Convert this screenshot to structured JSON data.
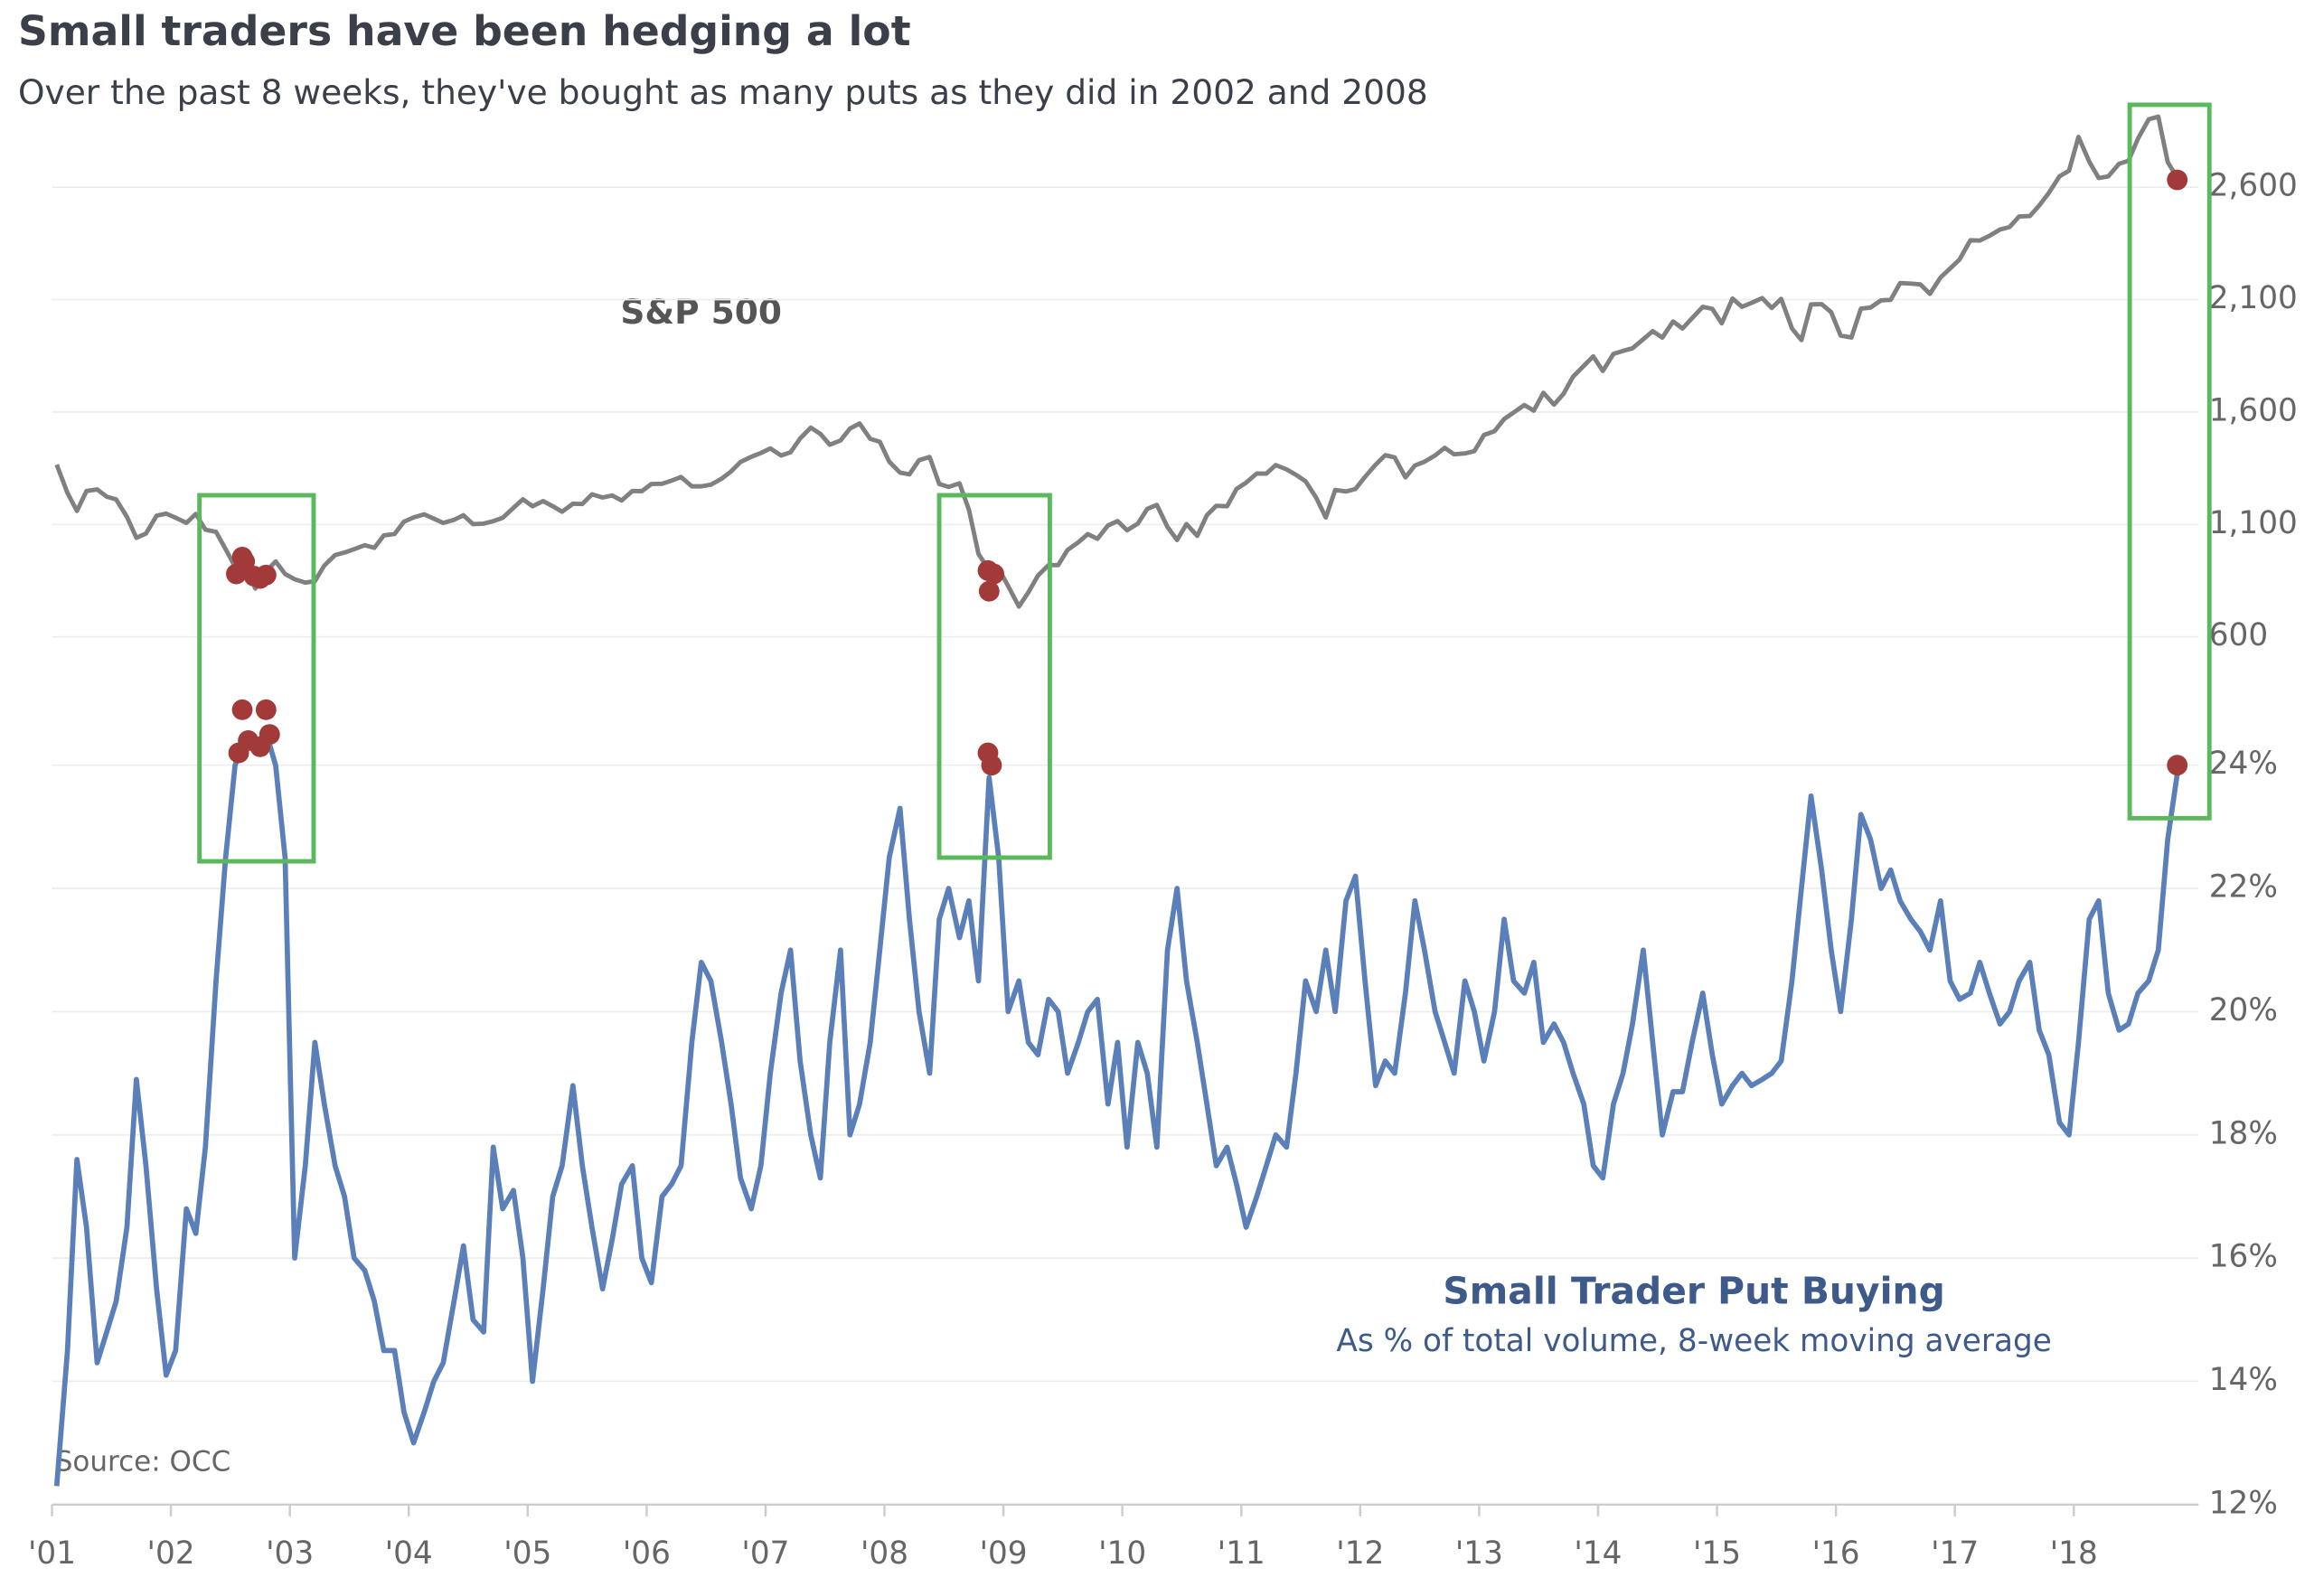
{
  "chart_data": {
    "type": "line",
    "title": "Small traders have been hedging a lot",
    "subtitle": "Over the past 8 weeks, they've bought as many puts as they did in 2002 and 2008",
    "annotations": [
      "As % of total volume, 8-week moving average",
      "Source: OCC"
    ],
    "x": [
      2001.04,
      2001.13,
      2001.21,
      2001.29,
      2001.38,
      2001.46,
      2001.54,
      2001.63,
      2001.71,
      2001.79,
      2001.88,
      2001.96,
      2002.04,
      2002.13,
      2002.21,
      2002.29,
      2002.38,
      2002.46,
      2002.54,
      2002.63,
      2002.71,
      2002.79,
      2002.88,
      2002.96,
      2003.04,
      2003.13,
      2003.21,
      2003.29,
      2003.38,
      2003.46,
      2003.54,
      2003.63,
      2003.71,
      2003.79,
      2003.88,
      2003.96,
      2004.04,
      2004.13,
      2004.21,
      2004.29,
      2004.38,
      2004.46,
      2004.54,
      2004.63,
      2004.71,
      2004.79,
      2004.88,
      2004.96,
      2005.04,
      2005.13,
      2005.21,
      2005.29,
      2005.38,
      2005.46,
      2005.54,
      2005.63,
      2005.71,
      2005.79,
      2005.88,
      2005.96,
      2006.04,
      2006.13,
      2006.21,
      2006.29,
      2006.38,
      2006.46,
      2006.54,
      2006.63,
      2006.71,
      2006.79,
      2006.88,
      2006.96,
      2007.04,
      2007.13,
      2007.21,
      2007.29,
      2007.38,
      2007.46,
      2007.54,
      2007.63,
      2007.71,
      2007.79,
      2007.88,
      2007.96,
      2008.04,
      2008.13,
      2008.21,
      2008.29,
      2008.38,
      2008.46,
      2008.54,
      2008.63,
      2008.71,
      2008.79,
      2008.88,
      2008.96,
      2009.04,
      2009.13,
      2009.21,
      2009.29,
      2009.38,
      2009.46,
      2009.54,
      2009.63,
      2009.71,
      2009.79,
      2009.88,
      2009.96,
      2010.04,
      2010.13,
      2010.21,
      2010.29,
      2010.38,
      2010.46,
      2010.54,
      2010.63,
      2010.71,
      2010.79,
      2010.88,
      2010.96,
      2011.04,
      2011.13,
      2011.21,
      2011.29,
      2011.38,
      2011.46,
      2011.54,
      2011.63,
      2011.71,
      2011.79,
      2011.88,
      2011.96,
      2012.04,
      2012.13,
      2012.21,
      2012.29,
      2012.38,
      2012.46,
      2012.54,
      2012.63,
      2012.71,
      2012.79,
      2012.88,
      2012.96,
      2013.04,
      2013.13,
      2013.21,
      2013.29,
      2013.38,
      2013.46,
      2013.54,
      2013.63,
      2013.71,
      2013.79,
      2013.88,
      2013.96,
      2014.04,
      2014.13,
      2014.21,
      2014.29,
      2014.38,
      2014.46,
      2014.54,
      2014.63,
      2014.71,
      2014.79,
      2014.88,
      2014.96,
      2015.04,
      2015.13,
      2015.21,
      2015.29,
      2015.38,
      2015.46,
      2015.54,
      2015.63,
      2015.71,
      2015.79,
      2015.88,
      2015.96,
      2016.04,
      2016.13,
      2016.21,
      2016.29,
      2016.38,
      2016.46,
      2016.54,
      2016.63,
      2016.71,
      2016.79,
      2016.88,
      2016.96,
      2017.04,
      2017.13,
      2017.21,
      2017.29,
      2017.38,
      2017.46,
      2017.54,
      2017.63,
      2017.71,
      2017.79,
      2017.88,
      2017.96,
      2018.04,
      2018.13,
      2018.21,
      2018.29,
      2018.38,
      2018.46,
      2018.54,
      2018.63,
      2018.71,
      2018.79,
      2018.88
    ],
    "series": [
      {
        "name": "S&P 500",
        "color": "#808080",
        "axis": "y2",
        "values": [
          1366,
          1240,
          1160,
          1249,
          1256,
          1224,
          1211,
          1134,
          1041,
          1060,
          1139,
          1148,
          1130,
          1107,
          1147,
          1077,
          1067,
          990,
          912,
          916,
          815,
          886,
          936,
          880,
          856,
          841,
          848,
          917,
          964,
          975,
          990,
          1008,
          996,
          1051,
          1058,
          1112,
          1131,
          1145,
          1126,
          1107,
          1121,
          1141,
          1102,
          1104,
          1115,
          1130,
          1174,
          1212,
          1181,
          1204,
          1181,
          1157,
          1192,
          1191,
          1234,
          1220,
          1229,
          1207,
          1249,
          1248,
          1280,
          1281,
          1295,
          1311,
          1270,
          1270,
          1277,
          1304,
          1336,
          1378,
          1401,
          1418,
          1438,
          1407,
          1421,
          1482,
          1531,
          1503,
          1455,
          1474,
          1527,
          1549,
          1481,
          1468,
          1379,
          1331,
          1323,
          1386,
          1400,
          1280,
          1267,
          1283,
          1166,
          969,
          896,
          903,
          826,
          735,
          798,
          873,
          919,
          919,
          987,
          1021,
          1057,
          1036,
          1096,
          1115,
          1074,
          1104,
          1169,
          1187,
          1089,
          1031,
          1102,
          1049,
          1141,
          1183,
          1181,
          1258,
          1286,
          1327,
          1326,
          1364,
          1345,
          1321,
          1292,
          1219,
          1131,
          1253,
          1247,
          1258,
          1312,
          1366,
          1408,
          1398,
          1310,
          1362,
          1379,
          1407,
          1441,
          1412,
          1416,
          1426,
          1498,
          1515,
          1569,
          1598,
          1631,
          1606,
          1686,
          1633,
          1682,
          1757,
          1806,
          1848,
          1783,
          1859,
          1872,
          1884,
          1924,
          1960,
          1931,
          2003,
          1972,
          2018,
          2068,
          2059,
          1995,
          2105,
          2068,
          2086,
          2107,
          2063,
          2104,
          1972,
          1920,
          2079,
          2080,
          2044,
          1940,
          1932,
          2060,
          2065,
          2097,
          2099,
          2174,
          2171,
          2168,
          2126,
          2199,
          2239,
          2279,
          2364,
          2363,
          2384,
          2412,
          2423,
          2470,
          2472,
          2519,
          2575,
          2648,
          2674,
          2824,
          2714,
          2641,
          2648,
          2705,
          2718,
          2816,
          2902,
          2914,
          2712,
          2633
        ]
      },
      {
        "name": "Small Trader Put Buying",
        "color": "#5b7fb8",
        "values": [
          12.3,
          14.5,
          17.6,
          16.5,
          14.3,
          14.8,
          15.3,
          16.5,
          18.9,
          17.5,
          15.5,
          14.1,
          14.5,
          16.8,
          16.4,
          17.8,
          20.5,
          22.5,
          24.0,
          24.5,
          24.2,
          24.6,
          24.0,
          22.5,
          16.0,
          17.5,
          19.5,
          18.5,
          17.5,
          17.0,
          16.0,
          15.8,
          15.3,
          14.5,
          14.5,
          13.5,
          13.0,
          13.5,
          14.0,
          14.3,
          15.3,
          16.2,
          15.0,
          14.8,
          17.8,
          16.8,
          17.1,
          16.0,
          14.0,
          15.5,
          17.0,
          17.5,
          18.8,
          17.5,
          16.5,
          15.5,
          16.3,
          17.2,
          17.5,
          16.0,
          15.6,
          17.0,
          17.2,
          17.5,
          19.5,
          20.8,
          20.5,
          19.5,
          18.5,
          17.3,
          16.8,
          17.5,
          19.0,
          20.3,
          21.0,
          19.2,
          18.0,
          17.3,
          19.5,
          21.0,
          18.0,
          18.5,
          19.5,
          21.0,
          22.5,
          23.3,
          21.5,
          20.0,
          19.0,
          21.5,
          22.0,
          21.2,
          21.8,
          20.5,
          23.8,
          22.5,
          20.0,
          20.5,
          19.5,
          19.3,
          20.2,
          20.0,
          19.0,
          19.5,
          20.0,
          20.2,
          18.5,
          19.5,
          17.8,
          19.5,
          19.0,
          17.8,
          21.0,
          22.0,
          20.5,
          19.5,
          18.5,
          17.5,
          17.8,
          17.2,
          16.5,
          17.0,
          17.5,
          18.0,
          17.8,
          19.0,
          20.5,
          20.0,
          21.0,
          20.0,
          21.8,
          22.2,
          20.5,
          18.8,
          19.2,
          19.0,
          20.3,
          21.8,
          21.0,
          20.0,
          19.5,
          19.0,
          20.5,
          20.0,
          19.2,
          20.0,
          21.5,
          20.5,
          20.3,
          20.8,
          19.5,
          19.8,
          19.5,
          19.0,
          18.5,
          17.5,
          17.3,
          18.5,
          19.0,
          19.8,
          21.0,
          19.5,
          18.0,
          18.7,
          18.7,
          19.5,
          20.3,
          19.3,
          18.5,
          18.8,
          19.0,
          18.8,
          18.9,
          19.0,
          19.2,
          20.5,
          22.0,
          23.5,
          22.3,
          21.0,
          20.0,
          21.5,
          23.2,
          22.8,
          22.0,
          22.3,
          21.8,
          21.5,
          21.3,
          21.0,
          21.8,
          20.5,
          20.2,
          20.3,
          20.8,
          20.3,
          19.8,
          20.0,
          20.5,
          20.8,
          19.7,
          19.3,
          18.2,
          18.0,
          19.5,
          21.5,
          21.8,
          20.3,
          19.7,
          19.8,
          20.3,
          20.5,
          21.0,
          22.8,
          24.0
        ]
      },
      {
        "color": "#a33a3a",
        "axis": "y2",
        "style": "markers",
        "x": [
          2002.55,
          2002.6,
          2002.62,
          2002.7,
          2002.75,
          2002.8,
          2008.87,
          2008.88,
          2008.92,
          2018.87
        ],
        "values": [
          880,
          955,
          935,
          870,
          860,
          875,
          895,
          803,
          880,
          2633
        ]
      },
      {
        "color": "#a33a3a",
        "style": "markers",
        "x": [
          2002.57,
          2002.6,
          2002.65,
          2002.75,
          2002.8,
          2002.83,
          2008.87,
          2008.9,
          2018.87
        ],
        "values": [
          24.2,
          24.9,
          24.4,
          24.3,
          24.9,
          24.5,
          24.2,
          24.0,
          24.0
        ]
      }
    ],
    "boxes": [
      {
        "x": [
          2002.24,
          2003.2
        ],
        "top": 1230,
        "bottom": 22.44,
        "color": "#5cb85c"
      },
      {
        "x": [
          2008.46,
          2009.39
        ],
        "top": 1230,
        "bottom": 22.5,
        "color": "#5cb85c"
      },
      {
        "x": [
          2018.47,
          2019.14
        ],
        "top": 2967,
        "bottom": 23.14,
        "color": "#5cb85c"
      }
    ],
    "xlim": [
      2001,
      2018.95
    ],
    "xticks": [
      {
        "value": 2001,
        "label": "'01"
      },
      {
        "value": 2002,
        "label": "'02"
      },
      {
        "value": 2003,
        "label": "'03"
      },
      {
        "value": 2004,
        "label": "'04"
      },
      {
        "value": 2005,
        "label": "'05"
      },
      {
        "value": 2006,
        "label": "'06"
      },
      {
        "value": 2007,
        "label": "'07"
      },
      {
        "value": 2008,
        "label": "'08"
      },
      {
        "value": 2009,
        "label": "'09"
      },
      {
        "value": 2010,
        "label": "'10"
      },
      {
        "value": 2011,
        "label": "'11"
      },
      {
        "value": 2012,
        "label": "'12"
      },
      {
        "value": 2013,
        "label": "'13"
      },
      {
        "value": 2014,
        "label": "'14"
      },
      {
        "value": 2015,
        "label": "'15"
      },
      {
        "value": 2016,
        "label": "'16"
      },
      {
        "value": 2017,
        "label": "'17"
      },
      {
        "value": 2018,
        "label": "'18"
      }
    ],
    "ylim": [
      12,
      25
    ],
    "yticks": [
      {
        "value": 12,
        "label": "12%"
      },
      {
        "value": 14,
        "label": "14%"
      },
      {
        "value": 16,
        "label": "16%"
      },
      {
        "value": 18,
        "label": "18%"
      },
      {
        "value": 20,
        "label": "20%"
      },
      {
        "value": 22,
        "label": "22%"
      },
      {
        "value": 24,
        "label": "24%"
      }
    ],
    "y2lim": [
      500,
      3000
    ],
    "y2ticks": [
      600,
      {
        "value": 1100,
        "label": "1,100"
      },
      {
        "value": 1600,
        "label": "1,600"
      },
      {
        "value": 2100,
        "label": "2,100"
      },
      {
        "value": 2600,
        "label": "2,600"
      }
    ],
    "grid": true
  }
}
